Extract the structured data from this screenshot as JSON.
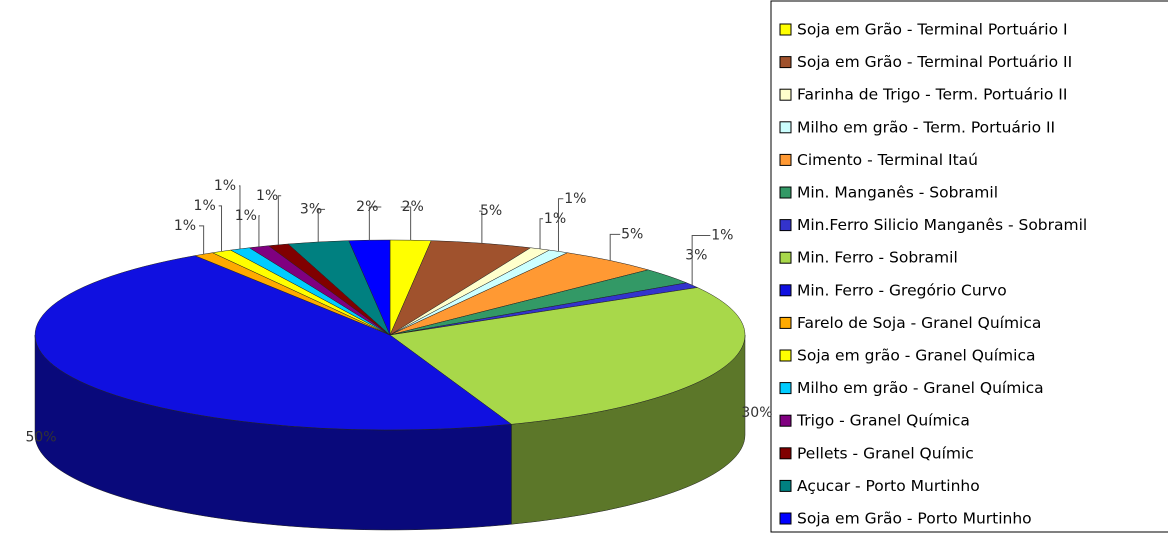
{
  "chart_data": {
    "type": "pie",
    "categories": [
      "Soja em Grão - Terminal Portuário I",
      "Soja em Grão - Terminal Portuário II",
      "Farinha de Trigo - Term. Portuário II",
      "Milho em grão - Term. Portuário II",
      "Cimento - Terminal Itaú",
      "Min. Manganês - Sobramil",
      "Min.Ferro Silicio Manganês - Sobramil",
      "Min. Ferro - Sobramil",
      "Min. Ferro -  Gregório Curvo",
      "Farelo de Soja - Granel Química",
      "Soja em grão - Granel Química",
      "Milho em grão - Granel Química",
      "Trigo - Granel Química",
      "Pellets - Granel Químic",
      "Açucar - Porto Murtinho",
      "Soja em Grão - Porto Murtinho"
    ],
    "values": [
      2,
      5,
      1,
      1,
      5,
      3,
      1,
      30,
      50,
      1,
      1,
      1,
      1,
      1,
      3,
      2
    ],
    "value_labels": [
      "2%",
      "5%",
      "1%",
      "1%",
      "5%",
      "3%",
      "1%",
      "30%",
      "50%",
      "1%",
      "1%",
      "1%",
      "1%",
      "1%",
      "3%",
      "2%"
    ],
    "colors": [
      "#ffff00",
      "#a0522d",
      "#ffffcc",
      "#ccffff",
      "#ff9933",
      "#339966",
      "#3333cc",
      "#a8d84a",
      "#1010e0",
      "#ffaa00",
      "#ffff00",
      "#00ccff",
      "#800080",
      "#800000",
      "#008080",
      "#0000ff"
    ]
  }
}
